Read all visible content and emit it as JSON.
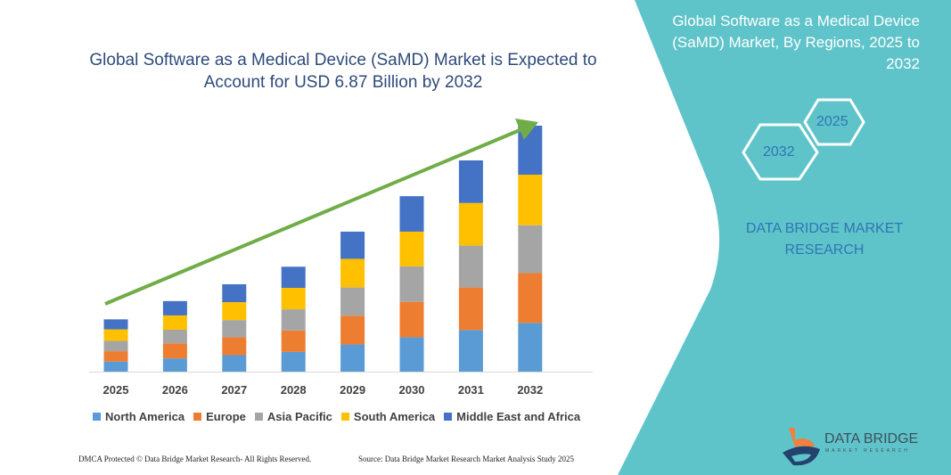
{
  "title": "Global Software as a Medical Device (SaMD) Market is Expected to Account for USD 6.87 Billion by 2032",
  "panel": {
    "title": "Global Software as a Medical Device (SaMD) Market, By Regions, 2025 to 2032",
    "hex_start": "2025",
    "hex_end": "2032",
    "brand": "DATA BRIDGE MARKET RESEARCH",
    "logo_text": "DATA BRIDGE",
    "logo_sub": "MARKET RESEARCH",
    "color": "#5fc4c9"
  },
  "footer": {
    "left": "DMCA Protected © Data Bridge Market Research- All Rights Reserved.",
    "right": "Source: Data Bridge Market Research Market Analysis Study 2025"
  },
  "chart_data": {
    "type": "bar",
    "stacked": true,
    "title": "Global Software as a Medical Device (SaMD) Market is Expected to Account for USD 6.87 Billion by 2032",
    "unit": "USD Billion",
    "categories": [
      "2025",
      "2026",
      "2027",
      "2028",
      "2029",
      "2030",
      "2031",
      "2032"
    ],
    "ylim": [
      0,
      6.87
    ],
    "grid": false,
    "y_axis_visible": false,
    "legend_position": "bottom",
    "trend_arrow": {
      "color": "#70ad47",
      "direction": "up"
    },
    "series": [
      {
        "name": "North America",
        "color": "#5b9bd5",
        "values": [
          0.28,
          0.37,
          0.46,
          0.55,
          0.76,
          0.96,
          1.16,
          1.36
        ]
      },
      {
        "name": "Europe",
        "color": "#ed7d31",
        "values": [
          0.29,
          0.42,
          0.5,
          0.6,
          0.8,
          0.99,
          1.19,
          1.39
        ]
      },
      {
        "name": "Asia Pacific",
        "color": "#a5a5a5",
        "values": [
          0.29,
          0.38,
          0.48,
          0.59,
          0.79,
          0.99,
          1.17,
          1.34
        ]
      },
      {
        "name": "South America",
        "color": "#ffc000",
        "values": [
          0.32,
          0.4,
          0.5,
          0.6,
          0.8,
          0.97,
          1.19,
          1.41
        ]
      },
      {
        "name": "Middle East and Africa",
        "color": "#4472c4",
        "values": [
          0.28,
          0.4,
          0.5,
          0.59,
          0.76,
          0.99,
          1.19,
          1.37
        ]
      }
    ]
  }
}
